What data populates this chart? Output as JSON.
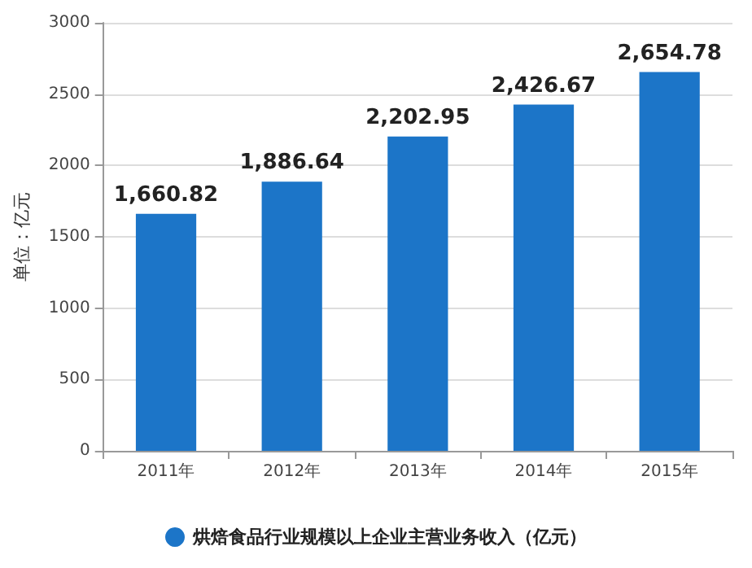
{
  "chart_data": {
    "type": "bar",
    "ylabel": "单位：亿元",
    "categories": [
      "2011年",
      "2012年",
      "2013年",
      "2014年",
      "2015年"
    ],
    "series": [
      {
        "name": "烘焙食品行业规模以上企业主营业务收入（亿元）",
        "color": "#1c75c8",
        "values": [
          1660.82,
          1886.64,
          2202.95,
          2426.67,
          2654.78
        ],
        "value_labels": [
          "1,660.82",
          "1,886.64",
          "2,202.95",
          "2,426.67",
          "2,654.78"
        ]
      }
    ],
    "ylim": [
      0,
      3000
    ],
    "yticks": [
      0,
      500,
      1000,
      1500,
      2000,
      2500,
      3000
    ],
    "grid": "y",
    "legend": "bottom"
  }
}
